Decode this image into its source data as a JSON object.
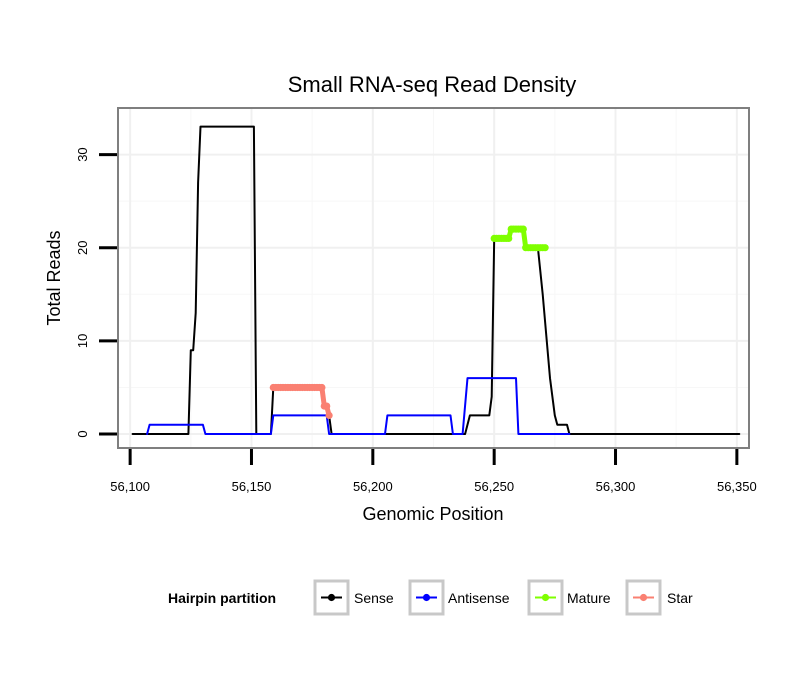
{
  "chart_data": {
    "type": "line",
    "title": "Small RNA-seq Read Density",
    "xlabel": "Genomic Position",
    "ylabel": "Total Reads",
    "xlim": [
      56095,
      56355
    ],
    "ylim": [
      -1.5,
      35
    ],
    "x_ticks": [
      56100,
      56150,
      56200,
      56250,
      56300,
      56350
    ],
    "x_tick_labels": [
      "56,100",
      "56,150",
      "56,200",
      "56,250",
      "56,300",
      "56,350"
    ],
    "y_ticks": [
      0,
      10,
      20,
      30
    ],
    "y_tick_labels": [
      "0",
      "10",
      "20",
      "30"
    ],
    "grid": true,
    "legend": {
      "title": "Hairpin partition",
      "position": "bottom",
      "entries": [
        "Sense",
        "Antisense",
        "Mature",
        "Star"
      ]
    },
    "series": [
      {
        "name": "Sense",
        "color": "#000000",
        "markers": false,
        "points": [
          [
            56101,
            0
          ],
          [
            56124,
            0
          ],
          [
            56125,
            9
          ],
          [
            56126,
            9
          ],
          [
            56127,
            13
          ],
          [
            56128,
            27
          ],
          [
            56129,
            33
          ],
          [
            56151,
            33
          ],
          [
            56152,
            0
          ],
          [
            56158,
            0
          ],
          [
            56159,
            5
          ],
          [
            56179,
            5
          ],
          [
            56180,
            3
          ],
          [
            56181,
            3
          ],
          [
            56182,
            2
          ],
          [
            56183,
            0
          ],
          [
            56206,
            0
          ],
          [
            56232,
            0
          ],
          [
            56238,
            0
          ],
          [
            56240,
            2
          ],
          [
            56248,
            2
          ],
          [
            56249,
            4
          ],
          [
            56250,
            21
          ],
          [
            56256,
            21
          ],
          [
            56257,
            22
          ],
          [
            56262,
            22
          ],
          [
            56263,
            20
          ],
          [
            56268,
            20
          ],
          [
            56270,
            15
          ],
          [
            56273,
            6
          ],
          [
            56275,
            2
          ],
          [
            56276,
            1
          ],
          [
            56280,
            1
          ],
          [
            56281,
            0
          ],
          [
            56351,
            0
          ]
        ]
      },
      {
        "name": "Antisense",
        "color": "#0000ff",
        "markers": false,
        "points": [
          [
            56107,
            0
          ],
          [
            56108,
            1
          ],
          [
            56130,
            1
          ],
          [
            56131,
            0
          ],
          [
            56152,
            0
          ],
          [
            56158,
            0
          ],
          [
            56159,
            2
          ],
          [
            56181,
            2
          ],
          [
            56182,
            0
          ],
          [
            56205,
            0
          ],
          [
            56206,
            2
          ],
          [
            56232,
            2
          ],
          [
            56233,
            0
          ],
          [
            56237,
            0
          ],
          [
            56239,
            6
          ],
          [
            56259,
            6
          ],
          [
            56260,
            0
          ],
          [
            56281,
            0
          ]
        ]
      },
      {
        "name": "Mature",
        "color": "#7fff00",
        "markers": true,
        "points": [
          [
            56250,
            21
          ],
          [
            56251,
            21
          ],
          [
            56252,
            21
          ],
          [
            56253,
            21
          ],
          [
            56254,
            21
          ],
          [
            56255,
            21
          ],
          [
            56256,
            21
          ],
          [
            56257,
            22
          ],
          [
            56258,
            22
          ],
          [
            56259,
            22
          ],
          [
            56260,
            22
          ],
          [
            56261,
            22
          ],
          [
            56262,
            22
          ],
          [
            56263,
            20
          ],
          [
            56264,
            20
          ],
          [
            56265,
            20
          ],
          [
            56266,
            20
          ],
          [
            56267,
            20
          ],
          [
            56268,
            20
          ],
          [
            56269,
            20
          ],
          [
            56270,
            20
          ],
          [
            56271,
            20
          ]
        ]
      },
      {
        "name": "Star",
        "color": "#fa8072",
        "markers": true,
        "points": [
          [
            56159,
            5
          ],
          [
            56160,
            5
          ],
          [
            56161,
            5
          ],
          [
            56162,
            5
          ],
          [
            56163,
            5
          ],
          [
            56164,
            5
          ],
          [
            56165,
            5
          ],
          [
            56166,
            5
          ],
          [
            56167,
            5
          ],
          [
            56168,
            5
          ],
          [
            56169,
            5
          ],
          [
            56170,
            5
          ],
          [
            56171,
            5
          ],
          [
            56172,
            5
          ],
          [
            56173,
            5
          ],
          [
            56174,
            5
          ],
          [
            56175,
            5
          ],
          [
            56176,
            5
          ],
          [
            56177,
            5
          ],
          [
            56178,
            5
          ],
          [
            56179,
            5
          ],
          [
            56180,
            3
          ],
          [
            56181,
            3
          ],
          [
            56182,
            2
          ]
        ]
      }
    ]
  }
}
